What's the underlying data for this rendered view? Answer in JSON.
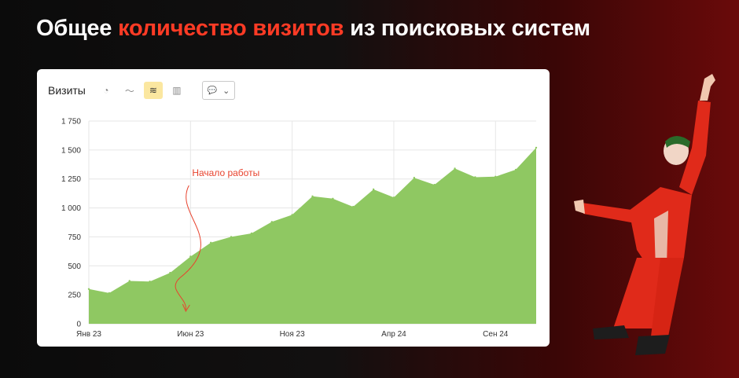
{
  "header": {
    "title_part1": "Общее ",
    "title_highlight": "количество визитов",
    "title_part2": " из поисковых систем"
  },
  "card": {
    "title": "Визиты",
    "toolbar": [
      {
        "name": "pie-chart-icon",
        "glyph": "◔",
        "active": false
      },
      {
        "name": "line-chart-icon",
        "glyph": "〜",
        "active": false
      },
      {
        "name": "area-chart-icon",
        "glyph": "≋",
        "active": true
      },
      {
        "name": "bar-chart-icon",
        "glyph": "▥",
        "active": false
      }
    ],
    "dropdown": {
      "icon": "comment-icon",
      "glyph": "💬",
      "chevron": "⌄"
    }
  },
  "colors": {
    "highlight": "#ff3b25",
    "area_fill": "#8fc862",
    "annotation": "#e8432e",
    "grid": "#e6e6e6"
  },
  "chart_data": {
    "type": "area",
    "y_ticks": [
      "0",
      "250",
      "500",
      "750",
      "1 000",
      "1 250",
      "1 500",
      "1 750"
    ],
    "ylim": [
      0,
      1750
    ],
    "x_labels": [
      "Янв 23",
      "Июн 23",
      "Ноя 23",
      "Апр 24",
      "Сен 24"
    ],
    "x_label_positions": [
      0,
      5,
      10,
      15,
      20
    ],
    "grid": true,
    "series": [
      {
        "values": [
          300,
          265,
          370,
          365,
          440,
          580,
          700,
          750,
          780,
          880,
          940,
          1100,
          1080,
          1010,
          1160,
          1090,
          1260,
          1200,
          1340,
          1265,
          1270,
          1330,
          1520
        ]
      }
    ],
    "annotation": {
      "text": "Начало работы",
      "at_index": 5
    }
  }
}
